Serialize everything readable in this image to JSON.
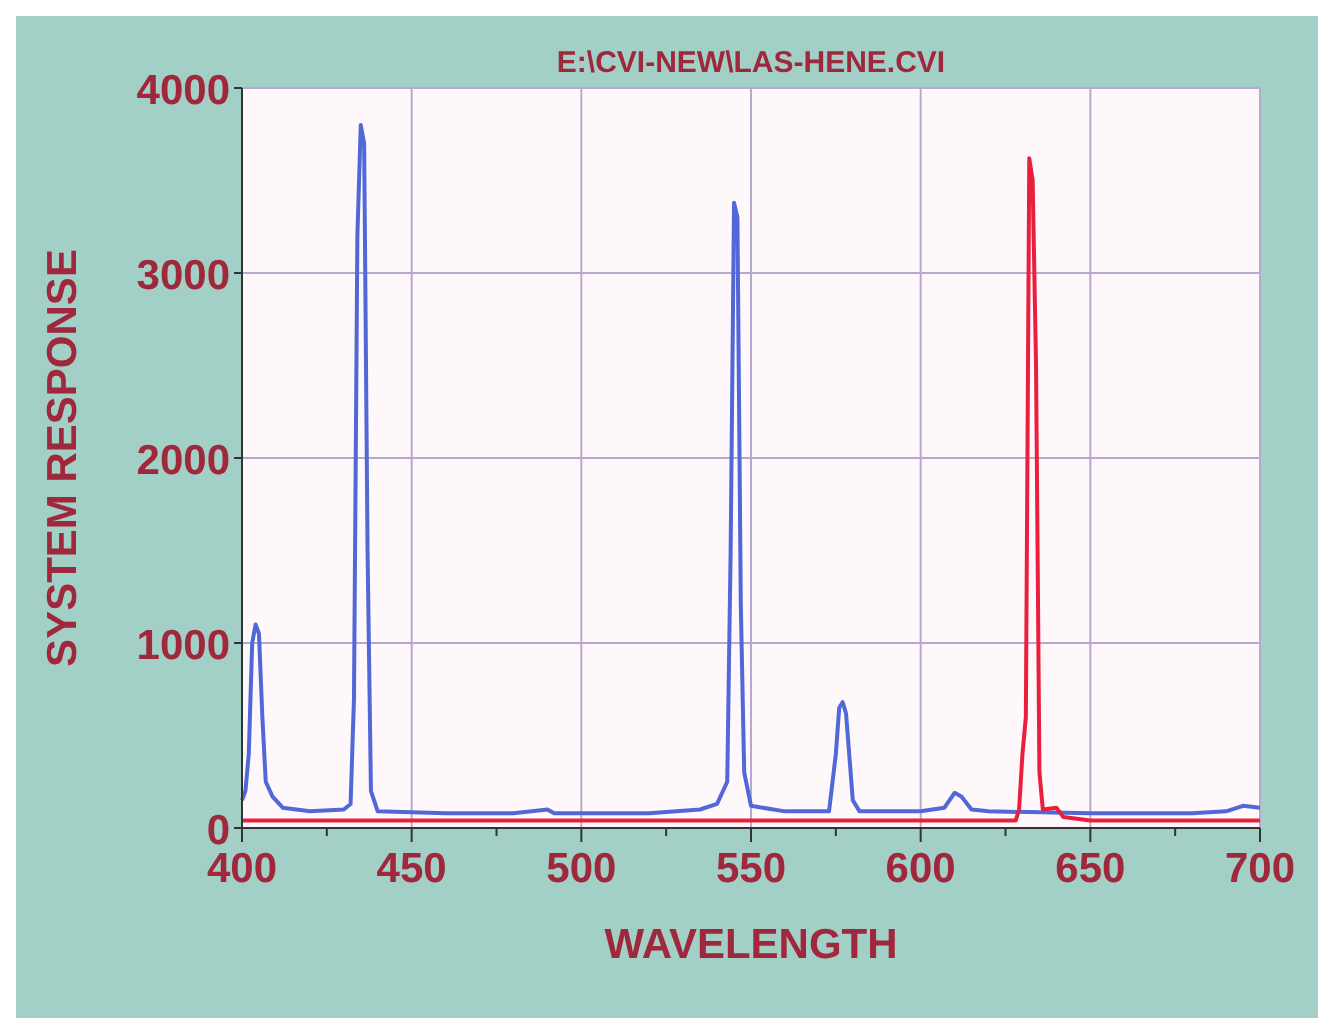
{
  "chart_data": {
    "type": "line",
    "title": "E:\\CVI-NEW\\LAS-HENE.CVI",
    "xlabel": "WAVELENGTH",
    "ylabel": "SYSTEM RESPONSE",
    "xlim": [
      400,
      700
    ],
    "xticks": [
      400,
      {
        "value": 425,
        "label": null
      },
      450,
      {
        "value": 475,
        "label": null
      },
      500,
      {
        "value": 525,
        "label": null
      },
      550,
      {
        "value": 575,
        "label": null
      },
      600,
      {
        "value": 625,
        "label": null
      },
      650,
      {
        "value": 675,
        "label": null
      },
      700
    ],
    "ylim": [
      0,
      4000
    ],
    "yticks": [
      0,
      1000,
      2000,
      3000,
      4000
    ],
    "grid": true,
    "marker": "none",
    "line_style": "solid",
    "series": [
      {
        "color": "#5068d8",
        "x": [
          400,
          401,
          402,
          403,
          404,
          405,
          406,
          407,
          409,
          412,
          420,
          430,
          432,
          433,
          434,
          435,
          436,
          437,
          438,
          440,
          460,
          480,
          490,
          492,
          520,
          535,
          540,
          543,
          544,
          545,
          546,
          547,
          548,
          550,
          560,
          573,
          575,
          576,
          577,
          578,
          580,
          582,
          600,
          607,
          610,
          612,
          615,
          620,
          650,
          680,
          690,
          695,
          700
        ],
        "values": [
          150,
          200,
          400,
          1000,
          1100,
          1050,
          600,
          250,
          170,
          110,
          90,
          100,
          130,
          700,
          3200,
          3800,
          3700,
          1500,
          200,
          90,
          80,
          80,
          100,
          80,
          80,
          100,
          130,
          250,
          1500,
          3380,
          3300,
          1200,
          300,
          120,
          90,
          90,
          400,
          650,
          680,
          620,
          150,
          90,
          90,
          110,
          190,
          170,
          100,
          90,
          80,
          80,
          90,
          120,
          110
        ]
      },
      {
        "color": "#e8203c",
        "x": [
          400,
          600,
          628,
          629,
          630,
          631,
          632,
          633,
          634,
          635,
          636,
          640,
          642,
          650,
          700
        ],
        "values": [
          40,
          40,
          40,
          100,
          400,
          600,
          3620,
          3500,
          2500,
          300,
          100,
          110,
          60,
          40,
          40
        ]
      }
    ]
  }
}
